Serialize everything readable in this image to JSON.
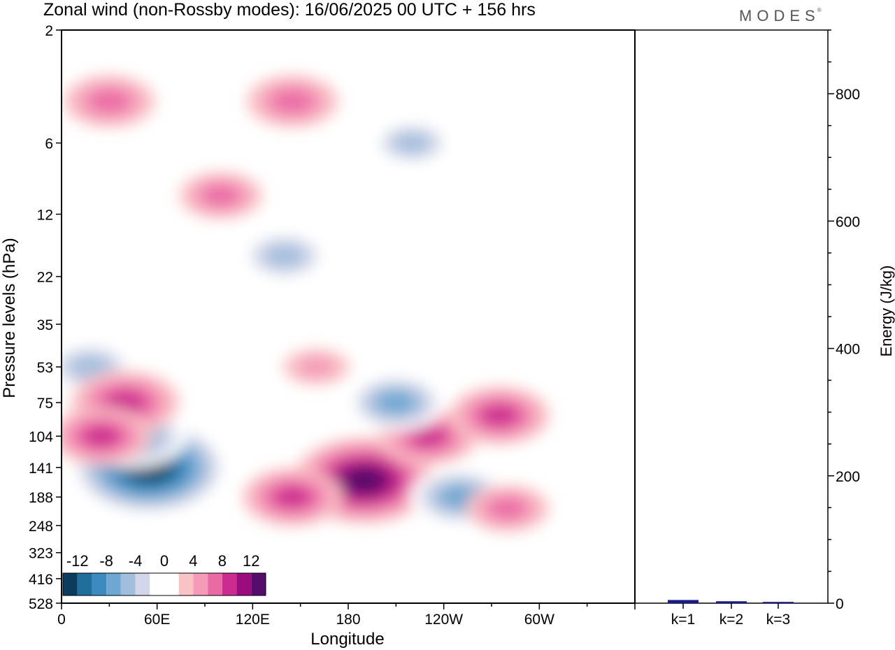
{
  "header": {
    "title": "Zonal wind (non-Rossby modes):  16/06/2025  00 UTC  + 156 hrs",
    "brand": "MODES",
    "brand_mark": "®"
  },
  "chart_data": [
    {
      "type": "heatmap",
      "title": "Zonal wind (non-Rossby modes):  16/06/2025  00 UTC  + 156 hrs",
      "xlabel": "Longitude",
      "ylabel": "Pressure levels (hPa)",
      "x_ticks": [
        "0",
        "60E",
        "120E",
        "180",
        "120W",
        "60W"
      ],
      "x_tick_degrees": [
        0,
        60,
        120,
        180,
        240,
        300
      ],
      "xlim": [
        0,
        360
      ],
      "y_levels": [
        "2",
        "6",
        "12",
        "22",
        "35",
        "53",
        "75",
        "104",
        "141",
        "188",
        "248",
        "323",
        "416",
        "528"
      ],
      "colorbar": {
        "labels": [
          "-12",
          "-8",
          "-4",
          "0",
          "4",
          "8",
          "12"
        ],
        "colors": [
          "#0b3c5d",
          "#1f6e9c",
          "#3d8ac0",
          "#6ea7d1",
          "#a3bedd",
          "#d2d6e8",
          "#ffffff",
          "#ffffff",
          "#f9c2c4",
          "#f59ab9",
          "#ea6aa4",
          "#cc2b8f",
          "#9b0d7e",
          "#560c6b"
        ]
      },
      "features": [
        {
          "lon": 55,
          "level": 141,
          "value": -14
        },
        {
          "lon": 45,
          "level": 104,
          "value": -8
        },
        {
          "lon": 18,
          "level": 53,
          "value": -6
        },
        {
          "lon": 40,
          "level": 75,
          "value": 8
        },
        {
          "lon": 25,
          "level": 104,
          "value": 7
        },
        {
          "lon": 190,
          "level": 160,
          "value": 12
        },
        {
          "lon": 145,
          "level": 188,
          "value": 7
        },
        {
          "lon": 230,
          "level": 104,
          "value": 7
        },
        {
          "lon": 275,
          "level": 85,
          "value": 7
        },
        {
          "lon": 210,
          "level": 75,
          "value": -7
        },
        {
          "lon": 250,
          "level": 188,
          "value": -7
        },
        {
          "lon": 280,
          "level": 210,
          "value": 5
        },
        {
          "lon": 140,
          "level": 18,
          "value": -6
        },
        {
          "lon": 220,
          "level": 6,
          "value": -5
        },
        {
          "lon": 30,
          "level": 4,
          "value": 6
        },
        {
          "lon": 145,
          "level": 4,
          "value": 6
        },
        {
          "lon": 100,
          "level": 10,
          "value": 5
        },
        {
          "lon": 160,
          "level": 53,
          "value": 3
        }
      ]
    },
    {
      "type": "bar",
      "categories": [
        "k=1",
        "k=2",
        "k=3"
      ],
      "values": [
        5,
        3,
        2
      ],
      "ylabel": "Energy (J/kg)",
      "ylim": [
        0,
        900
      ],
      "y_ticks": [
        0,
        200,
        400,
        600,
        800
      ],
      "bar_color": "#1a1a8c"
    }
  ]
}
